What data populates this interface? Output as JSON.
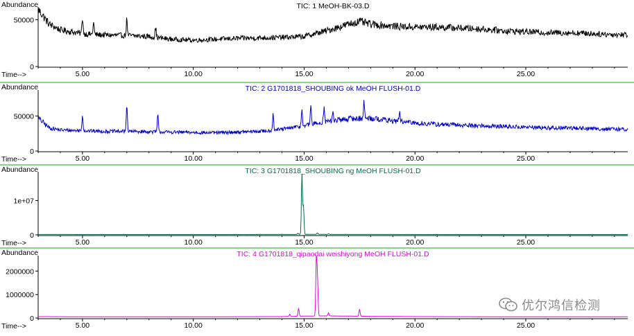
{
  "chart_data": [
    {
      "type": "line",
      "title": "TIC: 1 MeOH-BK-03.D",
      "ylabel": "Abundance",
      "xlabel": "Time-->",
      "color": "#000000",
      "xlim": [
        3.0,
        29.6
      ],
      "ylim": [
        0,
        62000
      ],
      "x_ticks": [
        5,
        10,
        15,
        20,
        25
      ],
      "x_tick_labels": [
        "5.00",
        "10.00",
        "15.00",
        "20.00",
        "25.00"
      ],
      "y_ticks": [
        0,
        50000
      ],
      "y_tick_labels": [
        "0",
        "50000"
      ],
      "x": [
        3.0,
        3.5,
        4.0,
        4.5,
        5.0,
        5.5,
        6.0,
        7.0,
        8.0,
        9.0,
        10.0,
        11.0,
        12.0,
        13.0,
        14.0,
        15.0,
        16.0,
        17.0,
        17.5,
        18.0,
        19.0,
        20.0,
        21.0,
        22.0,
        23.0,
        24.0,
        25.0,
        26.0,
        27.0,
        28.0,
        29.0,
        29.6
      ],
      "y": [
        61000,
        45000,
        39000,
        37000,
        35000,
        34000,
        33500,
        33000,
        32000,
        29000,
        28000,
        29000,
        30000,
        30500,
        31000,
        32000,
        38000,
        45000,
        48000,
        45000,
        43000,
        42000,
        42000,
        41000,
        40000,
        38000,
        37000,
        36000,
        36000,
        35000,
        34000,
        34000
      ],
      "peaks": [
        {
          "x": 5.0,
          "y": 52000
        },
        {
          "x": 5.5,
          "y": 47000
        },
        {
          "x": 7.0,
          "y": 51000
        },
        {
          "x": 8.3,
          "y": 42000
        }
      ]
    },
    {
      "type": "line",
      "title": "TIC: 2 G1701818_SHOUBING ok MeOH FLUSH-01.D",
      "ylabel": "Abundance",
      "xlabel": "Time-->",
      "color": "#0000cc",
      "xlim": [
        3.0,
        29.6
      ],
      "ylim": [
        0,
        85000
      ],
      "x_ticks": [
        5,
        10,
        15,
        20,
        25
      ],
      "x_tick_labels": [
        "5.00",
        "10.00",
        "15.00",
        "20.00",
        "25.00"
      ],
      "y_ticks": [
        0,
        50000
      ],
      "y_tick_labels": [
        "0",
        "50000"
      ],
      "x": [
        3.0,
        3.5,
        4.0,
        5.0,
        6.0,
        7.0,
        8.0,
        9.0,
        10.0,
        11.0,
        12.0,
        13.0,
        14.0,
        15.0,
        16.0,
        17.0,
        18.0,
        19.0,
        20.0,
        21.0,
        22.0,
        23.0,
        24.0,
        25.0,
        26.0,
        27.0,
        28.0,
        29.0,
        29.6
      ],
      "y": [
        47000,
        33000,
        30000,
        29000,
        28000,
        28000,
        27500,
        27000,
        26500,
        26000,
        27000,
        28000,
        31000,
        36000,
        42000,
        46000,
        47000,
        43000,
        40000,
        38000,
        37000,
        36000,
        35000,
        34000,
        33000,
        33000,
        32000,
        31000,
        31000
      ],
      "peaks": [
        {
          "x": 5.0,
          "y": 51000
        },
        {
          "x": 7.0,
          "y": 67000
        },
        {
          "x": 8.4,
          "y": 52000
        },
        {
          "x": 13.6,
          "y": 54000
        },
        {
          "x": 14.9,
          "y": 60000
        },
        {
          "x": 15.3,
          "y": 66000
        },
        {
          "x": 15.9,
          "y": 63000
        },
        {
          "x": 16.3,
          "y": 55000
        },
        {
          "x": 17.7,
          "y": 70000
        },
        {
          "x": 19.3,
          "y": 56000
        }
      ]
    },
    {
      "type": "line",
      "title": "TIC: 3 G1701818_SHOUBING ng MeOH FLUSH-01.D",
      "ylabel": "Abundance",
      "xlabel": "Time-->",
      "color": "#006b4f",
      "xlim": [
        3.0,
        29.6
      ],
      "ylim": [
        0,
        18000000
      ],
      "x_ticks": [
        5,
        10,
        15,
        20,
        25
      ],
      "x_tick_labels": [
        "5.00",
        "10.00",
        "15.00",
        "20.00",
        "25.00"
      ],
      "y_ticks": [
        0,
        10000000
      ],
      "y_tick_labels": [
        "0",
        "1e+07"
      ],
      "x": [
        3.0,
        5.0,
        10.0,
        14.5,
        15.5,
        16.0,
        20.0,
        25.0,
        29.6
      ],
      "y": [
        120000,
        110000,
        100000,
        120000,
        150000,
        130000,
        110000,
        100000,
        100000
      ],
      "peaks": [
        {
          "x": 14.72,
          "y": 500000
        },
        {
          "x": 14.9,
          "y": 17800000
        },
        {
          "x": 14.97,
          "y": 8500000
        },
        {
          "x": 15.6,
          "y": 600000
        },
        {
          "x": 16.1,
          "y": 300000
        }
      ]
    },
    {
      "type": "line",
      "title": "TIC: 4 G1701818_qipaodai  weishiyong  MeOH FLUSH-01.D",
      "ylabel": "Abundance",
      "xlabel": "Time-->",
      "color": "#e000e0",
      "xlim": [
        3.0,
        29.6
      ],
      "ylim": [
        0,
        2600000
      ],
      "x_ticks": [
        5,
        10,
        15,
        20,
        25
      ],
      "x_tick_labels": [
        "5.00",
        "10.00",
        "15.00",
        "20.00",
        "25.00"
      ],
      "y_ticks": [
        0,
        1000000,
        2000000
      ],
      "y_tick_labels": [
        "0",
        "1000000",
        "2000000"
      ],
      "x": [
        3.0,
        5.0,
        10.0,
        14.0,
        15.0,
        16.0,
        18.0,
        20.0,
        25.0,
        29.6
      ],
      "y": [
        60000,
        50000,
        50000,
        60000,
        80000,
        90000,
        70000,
        60000,
        50000,
        50000
      ],
      "peaks": [
        {
          "x": 14.75,
          "y": 420000
        },
        {
          "x": 15.55,
          "y": 2480000
        },
        {
          "x": 15.6,
          "y": 1700000
        },
        {
          "x": 16.1,
          "y": 220000
        },
        {
          "x": 17.5,
          "y": 380000
        },
        {
          "x": 14.35,
          "y": 160000
        }
      ]
    }
  ],
  "watermark": {
    "icon": "wechat-icon",
    "text": "优尔鸿信检测",
    "color": "#8a8a8a"
  }
}
